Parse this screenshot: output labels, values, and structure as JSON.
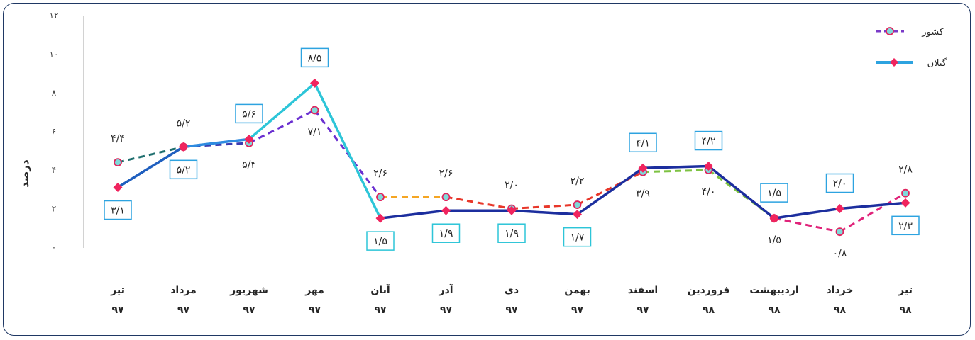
{
  "chart_data": {
    "type": "line",
    "ylabel": "درصد",
    "ylim": [
      0,
      12
    ],
    "yticks": [
      "۰",
      "۲",
      "۴",
      "۶",
      "۸",
      "۱۰",
      "۱۲"
    ],
    "categories": [
      {
        "month": "تیر",
        "year": "۹۷"
      },
      {
        "month": "مرداد",
        "year": "۹۷"
      },
      {
        "month": "شهریور",
        "year": "۹۷"
      },
      {
        "month": "مهر",
        "year": "۹۷"
      },
      {
        "month": "آبان",
        "year": "۹۷"
      },
      {
        "month": "آذر",
        "year": "۹۷"
      },
      {
        "month": "دی",
        "year": "۹۷"
      },
      {
        "month": "بهمن",
        "year": "۹۷"
      },
      {
        "month": "اسفند",
        "year": "۹۷"
      },
      {
        "month": "فروردین",
        "year": "۹۸"
      },
      {
        "month": "اردیبهشت",
        "year": "۹۸"
      },
      {
        "month": "خرداد",
        "year": "۹۸"
      },
      {
        "month": "تیر",
        "year": "۹۸"
      }
    ],
    "series": [
      {
        "name": "کشور",
        "values": [
          4.4,
          5.2,
          5.4,
          7.1,
          2.6,
          2.6,
          2.0,
          2.2,
          3.9,
          4.0,
          1.5,
          0.8,
          2.8
        ],
        "labels": [
          "۴/۴",
          "۵/۲",
          "۵/۴",
          "۷/۱",
          "۲/۶",
          "۲/۶",
          "۲/۰",
          "۲/۲",
          "۳/۹",
          "۴/۰",
          "۱/۵",
          "۰/۸",
          "۲/۸"
        ],
        "style": "dashed",
        "marker": "circle",
        "marker_fill": "#7FD9D9",
        "marker_edge": "#E0245E",
        "segment_colors": [
          "#1E6E6E",
          "#3A3AB0",
          "#6A2FD0",
          "#6A2FD0",
          "#F5A623",
          "#E8372A",
          "#E8372A",
          "#E8372A",
          "#7DC242",
          "#7DC242",
          "#E0237A",
          "#E0237A"
        ]
      },
      {
        "name": "گیلان",
        "values": [
          3.1,
          5.2,
          5.6,
          8.5,
          1.5,
          1.9,
          1.9,
          1.7,
          4.1,
          4.2,
          1.5,
          2.0,
          2.3
        ],
        "labels": [
          "۳/۱",
          "۵/۲",
          "۵/۶",
          "۸/۵",
          "۱/۵",
          "۱/۹",
          "۱/۹",
          "۱/۷",
          "۴/۱",
          "۴/۲",
          "۱/۵",
          "۲/۰",
          "۲/۳"
        ],
        "style": "solid",
        "marker": "diamond",
        "marker_fill": "#F0245E",
        "segment_colors": [
          "#1F5FBF",
          "#2E8BE0",
          "#2DC5D8",
          "#2DC5D8",
          "#1C2E9E",
          "#1C2E9E",
          "#1C2E9E",
          "#1C2E9E",
          "#1C2E9E",
          "#1C2E9E",
          "#1C2E9E",
          "#1C2E9E"
        ],
        "label_boxes": true
      }
    ],
    "legend_position": "top-right",
    "grid": false
  }
}
